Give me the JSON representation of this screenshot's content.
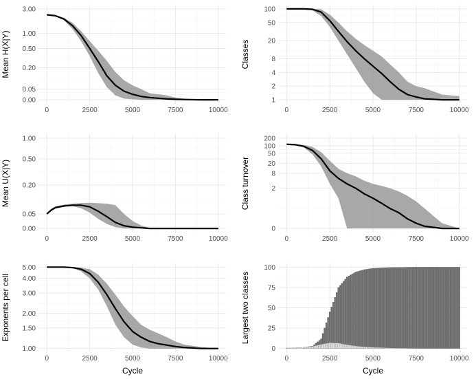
{
  "colors": {
    "line": "#000000",
    "band": "#999999",
    "bar_dark": "#6e6e6e",
    "bar_light": "#d9d9d9",
    "grid": "#e6e6e6"
  },
  "chart_data": [
    {
      "type": "line",
      "id": "p1",
      "panel": "top-left",
      "xlabel": "",
      "ylabel": "Mean H(X|Y)",
      "scale": "pseudo-log",
      "ylim": [
        0,
        3
      ],
      "yticks": [
        0.0,
        0.05,
        0.2,
        0.5,
        1.0,
        3.0
      ],
      "yticklabels": [
        "0.00",
        "0.05",
        "0.20",
        "0.50",
        "1.00",
        "3.00"
      ],
      "xlim": [
        0,
        10000
      ],
      "xticks": [
        0,
        2500,
        5000,
        7500,
        10000
      ],
      "xticklabels": [
        "0",
        "2500",
        "5000",
        "7500",
        "10000"
      ],
      "x": [
        0,
        500,
        1000,
        1500,
        2000,
        2500,
        3000,
        3500,
        4000,
        4500,
        5000,
        5500,
        6000,
        6500,
        7000,
        7500,
        8000,
        9000,
        10000
      ],
      "y": [
        2.3,
        2.2,
        1.9,
        1.4,
        0.9,
        0.5,
        0.27,
        0.13,
        0.07,
        0.04,
        0.025,
        0.015,
        0.01,
        0.007,
        0.004,
        0.002,
        0.001,
        0.0,
        0.0
      ],
      "lower": [
        2.3,
        2.15,
        1.8,
        1.2,
        0.7,
        0.35,
        0.15,
        0.06,
        0.02,
        0.005,
        0.002,
        0.0,
        0.0,
        0.0,
        0.0,
        0.0,
        0.0,
        0.0,
        0.0
      ],
      "upper": [
        2.3,
        2.25,
        2.0,
        1.6,
        1.1,
        0.7,
        0.45,
        0.28,
        0.16,
        0.1,
        0.07,
        0.05,
        0.03,
        0.025,
        0.02,
        0.01,
        0.005,
        0.001,
        0.0
      ]
    },
    {
      "type": "line",
      "id": "p2",
      "panel": "top-right",
      "xlabel": "",
      "ylabel": "Classes",
      "scale": "log",
      "ylim": [
        1,
        100
      ],
      "yticks": [
        1,
        2,
        4,
        8,
        20,
        50,
        100
      ],
      "yticklabels": [
        "1",
        "2",
        "4",
        "8",
        "20",
        "50",
        "100"
      ],
      "xlim": [
        0,
        10000
      ],
      "xticks": [
        0,
        2500,
        5000,
        7500,
        10000
      ],
      "xticklabels": [
        "0",
        "2500",
        "5000",
        "7500",
        "10000"
      ],
      "x": [
        0,
        500,
        1000,
        1500,
        2000,
        2500,
        3000,
        3500,
        4000,
        4500,
        5000,
        5500,
        6000,
        6500,
        7000,
        7500,
        8000,
        9000,
        10000
      ],
      "y": [
        100,
        100,
        100,
        98,
        85,
        55,
        32,
        19,
        12,
        8,
        5.5,
        3.8,
        2.5,
        1.7,
        1.3,
        1.15,
        1.05,
        1.0,
        1.0
      ],
      "lower": [
        100,
        100,
        99,
        92,
        70,
        40,
        20,
        10,
        5,
        2.5,
        1.4,
        1.0,
        1.0,
        1.0,
        1.0,
        1.0,
        1.0,
        1.0,
        1.0
      ],
      "upper": [
        100,
        100,
        100,
        100,
        98,
        75,
        50,
        32,
        22,
        16,
        12,
        9,
        6,
        4,
        2.5,
        2.0,
        1.8,
        1.3,
        1.2
      ]
    },
    {
      "type": "line",
      "id": "p3",
      "panel": "middle-left",
      "xlabel": "",
      "ylabel": "Mean U(X|Y)",
      "scale": "pseudo-log",
      "ylim": [
        0,
        1
      ],
      "yticks": [
        0.0,
        0.05,
        0.2,
        0.5,
        1.0
      ],
      "yticklabels": [
        "0.00",
        "0.05",
        "0.20",
        "0.50",
        "1.00"
      ],
      "xlim": [
        0,
        10000
      ],
      "xticks": [
        0,
        2500,
        5000,
        7500,
        10000
      ],
      "xticklabels": [
        "0",
        "2500",
        "5000",
        "7500",
        "10000"
      ],
      "x": [
        0,
        250,
        500,
        1000,
        1500,
        2000,
        2500,
        3000,
        3500,
        4000,
        4500,
        5000,
        5500,
        6000,
        7000,
        8000,
        10000
      ],
      "y": [
        0.05,
        0.065,
        0.075,
        0.082,
        0.085,
        0.085,
        0.078,
        0.06,
        0.04,
        0.02,
        0.009,
        0.004,
        0.002,
        0.0,
        0.0,
        0.0,
        0.0
      ],
      "lower": [
        0.05,
        0.06,
        0.07,
        0.078,
        0.08,
        0.072,
        0.055,
        0.032,
        0.015,
        0.004,
        0.0,
        0.0,
        0.0,
        0.0,
        0.0,
        0.0,
        0.0
      ],
      "upper": [
        0.05,
        0.07,
        0.08,
        0.088,
        0.092,
        0.095,
        0.096,
        0.094,
        0.092,
        0.085,
        0.05,
        0.025,
        0.01,
        0.002,
        0.0,
        0.0,
        0.0
      ]
    },
    {
      "type": "line",
      "id": "p4",
      "panel": "middle-right",
      "xlabel": "",
      "ylabel": "Class turnover",
      "scale": "pseudo-log",
      "ylim": [
        0,
        200
      ],
      "yticks": [
        0,
        2,
        8,
        20,
        50,
        100,
        200
      ],
      "yticklabels": [
        "0",
        "2",
        "8",
        "20",
        "50",
        "100",
        "200"
      ],
      "xlim": [
        0,
        10000
      ],
      "xticks": [
        0,
        2500,
        5000,
        7500,
        10000
      ],
      "xticklabels": [
        "0",
        "2500",
        "5000",
        "7500",
        "10000"
      ],
      "x": [
        0,
        500,
        1000,
        1500,
        2000,
        2500,
        3000,
        3500,
        4000,
        4500,
        5000,
        5500,
        6000,
        6500,
        7000,
        7500,
        8000,
        9000,
        10000
      ],
      "y": [
        115,
        110,
        95,
        65,
        30,
        10,
        5,
        3,
        2,
        1.2,
        0.8,
        0.5,
        0.3,
        0.2,
        0.1,
        0.05,
        0.02,
        0.0,
        0.0
      ],
      "lower": [
        115,
        105,
        85,
        45,
        15,
        3,
        0.8,
        0.0,
        0.0,
        0.0,
        0.0,
        0.0,
        0.0,
        0.0,
        0.0,
        0.0,
        0.0,
        0.0,
        0.0
      ],
      "upper": [
        115,
        115,
        108,
        90,
        55,
        25,
        12,
        8,
        6,
        4,
        3,
        2.5,
        2,
        1.5,
        1,
        0.6,
        0.3,
        0.05,
        0.0
      ]
    },
    {
      "type": "line",
      "id": "p5",
      "panel": "bottom-left",
      "xlabel": "Cycle",
      "ylabel": "Exponents per cell",
      "scale": "log",
      "ylim": [
        1,
        5
      ],
      "yticks": [
        1.0,
        1.5,
        2.0,
        3.0,
        4.0,
        5.0
      ],
      "yticklabels": [
        "1.00",
        "1.50",
        "2.00",
        "3.00",
        "4.00",
        "5.00"
      ],
      "xlim": [
        0,
        10000
      ],
      "xticks": [
        0,
        2500,
        5000,
        7500,
        10000
      ],
      "xticklabels": [
        "0",
        "2500",
        "5000",
        "7500",
        "10000"
      ],
      "x": [
        0,
        500,
        1000,
        1500,
        2000,
        2500,
        3000,
        3500,
        4000,
        4500,
        5000,
        5500,
        6000,
        6500,
        7000,
        7500,
        8000,
        9000,
        10000
      ],
      "y": [
        5.0,
        5.0,
        5.0,
        4.95,
        4.8,
        4.4,
        3.7,
        2.9,
        2.2,
        1.7,
        1.4,
        1.25,
        1.15,
        1.1,
        1.07,
        1.04,
        1.02,
        1.0,
        1.0
      ],
      "lower": [
        5.0,
        5.0,
        5.0,
        4.9,
        4.6,
        4.0,
        3.2,
        2.3,
        1.6,
        1.25,
        1.08,
        1.02,
        1.0,
        1.0,
        1.0,
        1.0,
        1.0,
        1.0,
        1.0
      ],
      "upper": [
        5.0,
        5.0,
        5.0,
        5.0,
        4.95,
        4.8,
        4.3,
        3.6,
        2.9,
        2.3,
        1.9,
        1.6,
        1.45,
        1.35,
        1.25,
        1.15,
        1.08,
        1.03,
        1.0
      ]
    },
    {
      "type": "bar",
      "id": "p6",
      "panel": "bottom-right",
      "xlabel": "Cycle",
      "ylabel": "Largest two classes",
      "scale": "linear",
      "ylim": [
        0,
        100
      ],
      "yticks": [
        0,
        25,
        50,
        75,
        100
      ],
      "yticklabels": [
        "0",
        "25",
        "50",
        "75",
        "100"
      ],
      "xlim": [
        0,
        10000
      ],
      "xticks": [
        0,
        2500,
        5000,
        7500,
        10000
      ],
      "xticklabels": [
        "0",
        "2500",
        "5000",
        "7500",
        "10000"
      ],
      "series": [
        {
          "name": "",
          "x": [
            0,
            500,
            1000,
            1500,
            2000,
            2500,
            3000,
            3500,
            4000,
            4500,
            5000,
            5500,
            6000,
            7000,
            8000,
            10000
          ],
          "values": [
            1,
            1,
            1.5,
            3,
            12,
            45,
            75,
            88,
            94,
            97,
            98.5,
            99.2,
            99.6,
            99.9,
            100,
            100
          ]
        },
        {
          "name": "",
          "x": [
            0,
            500,
            1000,
            1500,
            2000,
            2500,
            3000,
            3500,
            4000,
            4500,
            5000,
            5500,
            6000,
            7000,
            8000,
            10000
          ],
          "values": [
            1,
            1,
            1.5,
            2.5,
            5,
            7,
            6.5,
            4.5,
            3,
            2,
            1.4,
            1,
            0.6,
            0.3,
            0.1,
            0.0
          ]
        }
      ]
    }
  ]
}
